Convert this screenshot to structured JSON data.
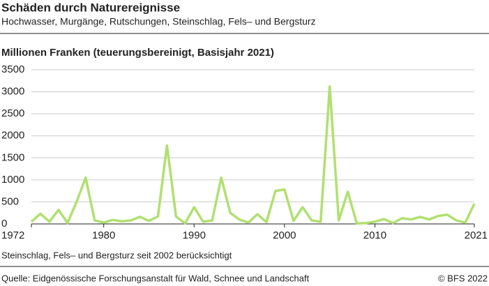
{
  "chart_data": {
    "type": "line",
    "title": "Schäden durch Naturereignisse",
    "subtitle": "Hochwasser, Murgänge, Rutschungen, Steinschlag, Fels– und Bergsturz",
    "y_label": "Millionen Franken (teuerungsbereinigt, Basisjahr 2021)",
    "note": "Steinschlag, Fels– und Bergsturz seit 2002 berücksichtigt",
    "source": "Quelle: Eidgenössische Forschungsanstalt für Wald, Schnee und Landschaft",
    "copyright": "© BFS 2022",
    "x": [
      1972,
      1973,
      1974,
      1975,
      1976,
      1977,
      1978,
      1979,
      1980,
      1981,
      1982,
      1983,
      1984,
      1985,
      1986,
      1987,
      1988,
      1989,
      1990,
      1991,
      1992,
      1993,
      1994,
      1995,
      1996,
      1997,
      1998,
      1999,
      2000,
      2001,
      2002,
      2003,
      2004,
      2005,
      2006,
      2007,
      2008,
      2009,
      2010,
      2011,
      2012,
      2013,
      2014,
      2015,
      2016,
      2017,
      2018,
      2019,
      2020,
      2021
    ],
    "series": [
      {
        "name": "Schäden",
        "color": "#b0e070",
        "values": [
          50,
          230,
          50,
          320,
          20,
          500,
          1050,
          80,
          30,
          90,
          60,
          80,
          160,
          70,
          170,
          1780,
          170,
          10,
          380,
          50,
          80,
          1050,
          250,
          100,
          30,
          220,
          40,
          750,
          780,
          70,
          380,
          80,
          50,
          3120,
          80,
          730,
          10,
          20,
          50,
          110,
          20,
          130,
          100,
          160,
          100,
          180,
          210,
          80,
          30,
          460
        ]
      }
    ],
    "xlim": [
      1972,
      2021
    ],
    "xticks": [
      1972,
      1980,
      1990,
      2000,
      2010,
      2021
    ],
    "ylim": [
      0,
      3500
    ],
    "yticks": [
      0,
      500,
      1000,
      1500,
      2000,
      2500,
      3000,
      3500
    ],
    "grid": true
  }
}
